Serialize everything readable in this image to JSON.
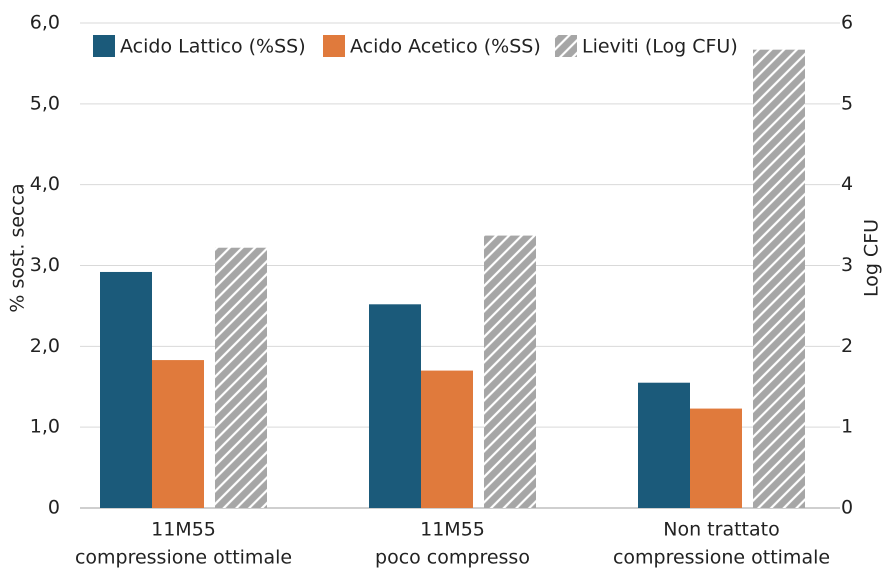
{
  "chart_data": {
    "type": "bar",
    "categories": [
      [
        "11M55",
        "compressione ottimale"
      ],
      [
        "11M55",
        "poco compresso"
      ],
      [
        "Non trattato",
        "compressione ottimale"
      ]
    ],
    "series": [
      {
        "name": "Acido Lattico (%SS)",
        "color": "#1b5a7a",
        "values": [
          2.92,
          2.52,
          1.55
        ]
      },
      {
        "name": "Acido Acetico (%SS)",
        "color": "#e07a3c",
        "values": [
          1.83,
          1.7,
          1.23
        ]
      },
      {
        "name": "Lieviti (Log CFU)",
        "color": "#a6a6a6",
        "hatch": true,
        "axis": "y2",
        "values": [
          3.22,
          3.37,
          5.67
        ]
      }
    ],
    "y_label": "% sost. secca",
    "y2_label": "Log CFU",
    "ylim": [
      0,
      6
    ],
    "yticks": [
      0,
      {
        "value": 1,
        "label": "1,0"
      },
      {
        "value": 2,
        "label": "2,0"
      },
      {
        "value": 3,
        "label": "3,0"
      },
      {
        "value": 4,
        "label": "4,0"
      },
      {
        "value": 5,
        "label": "5,0"
      },
      {
        "value": 6,
        "label": "6,0"
      }
    ],
    "y2lim": [
      0,
      6
    ],
    "y2ticks": [
      0,
      1,
      2,
      3,
      4,
      5,
      6
    ],
    "grid": true,
    "legend": "top"
  }
}
